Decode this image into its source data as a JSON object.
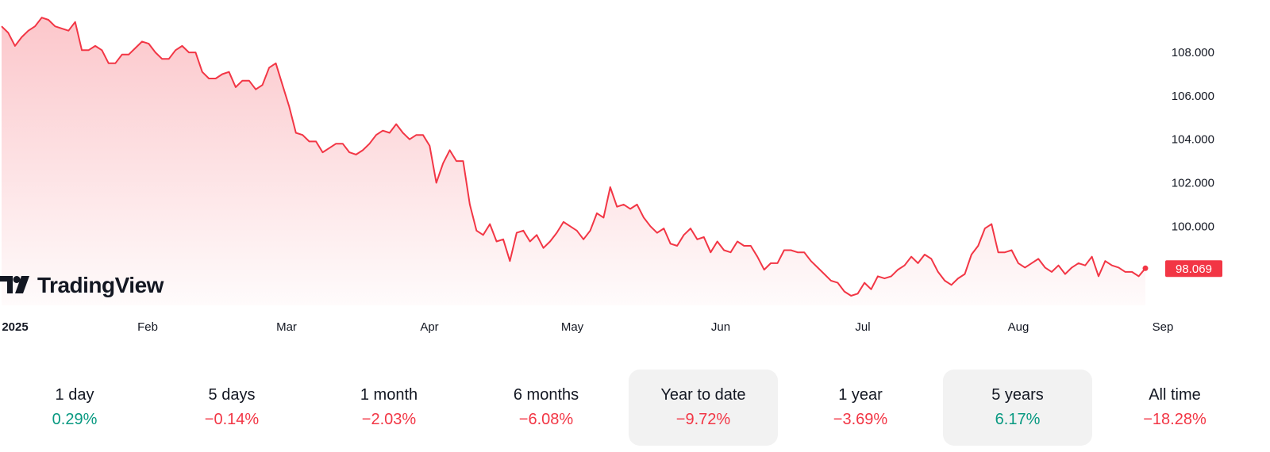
{
  "branding": {
    "logo_text": "TradingView"
  },
  "chart_data": {
    "type": "area",
    "x_ticks": [
      "2025",
      "Feb",
      "Mar",
      "Apr",
      "May",
      "Jun",
      "Jul",
      "Aug",
      "Sep"
    ],
    "y_ticks": [
      "100.000",
      "102.000",
      "104.000",
      "106.000",
      "108.000"
    ],
    "ylim": [
      96.4,
      109.9
    ],
    "grid": false,
    "last_value_label": "98.069",
    "colors": {
      "line": "#f23645",
      "fill": "#f23645",
      "tag": "#f23645"
    },
    "series": [
      {
        "values": [
          109.2,
          108.9,
          108.3,
          108.7,
          109.0,
          109.2,
          109.6,
          109.5,
          109.2,
          109.1,
          109.0,
          109.4,
          108.1,
          108.1,
          108.3,
          108.1,
          107.5,
          107.5,
          107.9,
          107.9,
          108.2,
          108.5,
          108.4,
          108.0,
          107.7,
          107.7,
          108.1,
          108.3,
          108.0,
          108.0,
          107.1,
          106.8,
          106.8,
          107.0,
          107.1,
          106.4,
          106.7,
          106.7,
          106.3,
          106.5,
          107.3,
          107.5,
          106.5,
          105.5,
          104.3,
          104.2,
          103.9,
          103.9,
          103.4,
          103.6,
          103.8,
          103.8,
          103.4,
          103.3,
          103.5,
          103.8,
          104.2,
          104.4,
          104.3,
          104.7,
          104.3,
          104.0,
          104.2,
          104.2,
          103.7,
          102.0,
          102.9,
          103.5,
          103.0,
          103.0,
          101.0,
          99.8,
          99.6,
          100.1,
          99.3,
          99.4,
          98.4,
          99.7,
          99.8,
          99.3,
          99.6,
          99.0,
          99.3,
          99.7,
          100.2,
          100.0,
          99.8,
          99.4,
          99.8,
          100.6,
          100.4,
          101.8,
          100.9,
          101.0,
          100.8,
          101.0,
          100.4,
          100.0,
          99.7,
          99.9,
          99.2,
          99.1,
          99.6,
          99.9,
          99.4,
          99.5,
          98.8,
          99.3,
          98.9,
          98.8,
          99.3,
          99.1,
          99.1,
          98.6,
          98.0,
          98.3,
          98.3,
          98.9,
          98.9,
          98.8,
          98.8,
          98.4,
          98.1,
          97.8,
          97.5,
          97.4,
          97.0,
          96.8,
          96.9,
          97.4,
          97.1,
          97.7,
          97.6,
          97.7,
          98.0,
          98.2,
          98.6,
          98.3,
          98.7,
          98.5,
          97.9,
          97.5,
          97.3,
          97.6,
          97.8,
          98.7,
          99.1,
          99.9,
          100.1,
          98.8,
          98.8,
          98.9,
          98.3,
          98.1,
          98.3,
          98.5,
          98.1,
          97.9,
          98.2,
          97.8,
          98.1,
          98.3,
          98.2,
          98.6,
          97.7,
          98.4,
          98.2,
          98.1,
          97.9,
          97.9,
          97.7,
          98.069
        ]
      }
    ]
  },
  "periods": [
    {
      "label": "1 day",
      "value": "0.29%",
      "trend": "pos",
      "selected": false
    },
    {
      "label": "5 days",
      "value": "−0.14%",
      "trend": "neg",
      "selected": false
    },
    {
      "label": "1 month",
      "value": "−2.03%",
      "trend": "neg",
      "selected": false
    },
    {
      "label": "6 months",
      "value": "−6.08%",
      "trend": "neg",
      "selected": false
    },
    {
      "label": "Year to date",
      "value": "−9.72%",
      "trend": "neg",
      "selected": true
    },
    {
      "label": "1 year",
      "value": "−3.69%",
      "trend": "neg",
      "selected": false
    },
    {
      "label": "5 years",
      "value": "6.17%",
      "trend": "pos",
      "selected": true
    },
    {
      "label": "All time",
      "value": "−18.28%",
      "trend": "neg",
      "selected": false
    }
  ]
}
